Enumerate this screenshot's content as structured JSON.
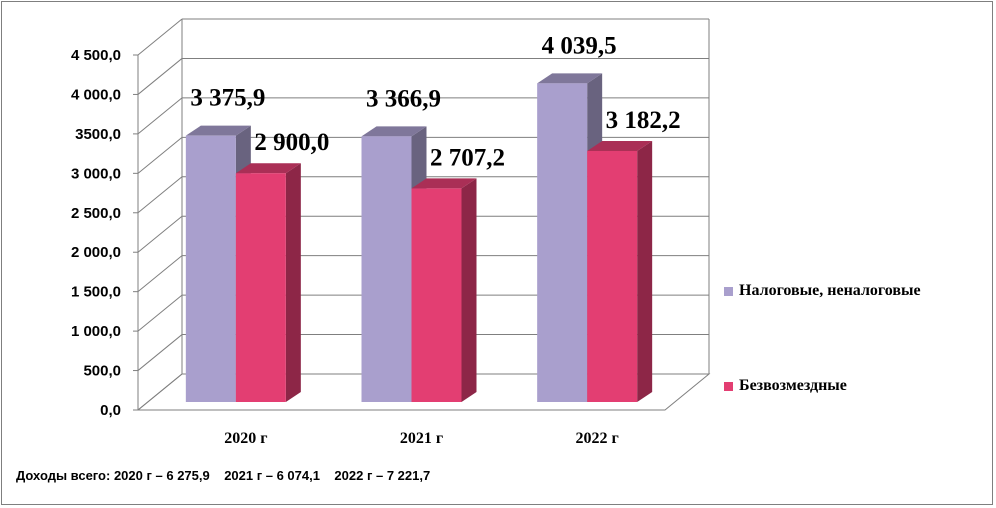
{
  "chart_data": {
    "type": "bar",
    "categories": [
      "2020 г",
      "2021 г",
      "2022 г"
    ],
    "series": [
      {
        "name": "Налоговые, неналоговые",
        "values": [
          3375.9,
          3366.9,
          4039.5
        ],
        "labels": [
          "3 375,9",
          "3 366,9",
          "4 039,5"
        ],
        "color": "#a99fcd"
      },
      {
        "name": "Безвозмездные",
        "values": [
          2900.0,
          2707.2,
          3182.2
        ],
        "labels": [
          "2 900,0",
          "2 707,2",
          "3 182,2"
        ],
        "color": "#e33e72"
      }
    ],
    "ylim": [
      0,
      4500
    ],
    "yticks": [
      0,
      500,
      1000,
      1500,
      2000,
      2500,
      3000,
      3500,
      4000,
      4500
    ],
    "ytick_labels": [
      "0,0",
      "500,0",
      "1 000,0",
      "1 500,0",
      "2 000,0",
      "2 500,0",
      "3 000,0",
      "3500,0",
      "4 000,0",
      "4 500,0"
    ],
    "grid": true,
    "legend_position": "right",
    "style": "3d-clustered-column"
  },
  "footnote": {
    "prefix": "Доходы всего:",
    "items": [
      "2020 г – 6 275,9",
      "2021 г – 6 074,1",
      "2022 г – 7 221,7"
    ]
  }
}
